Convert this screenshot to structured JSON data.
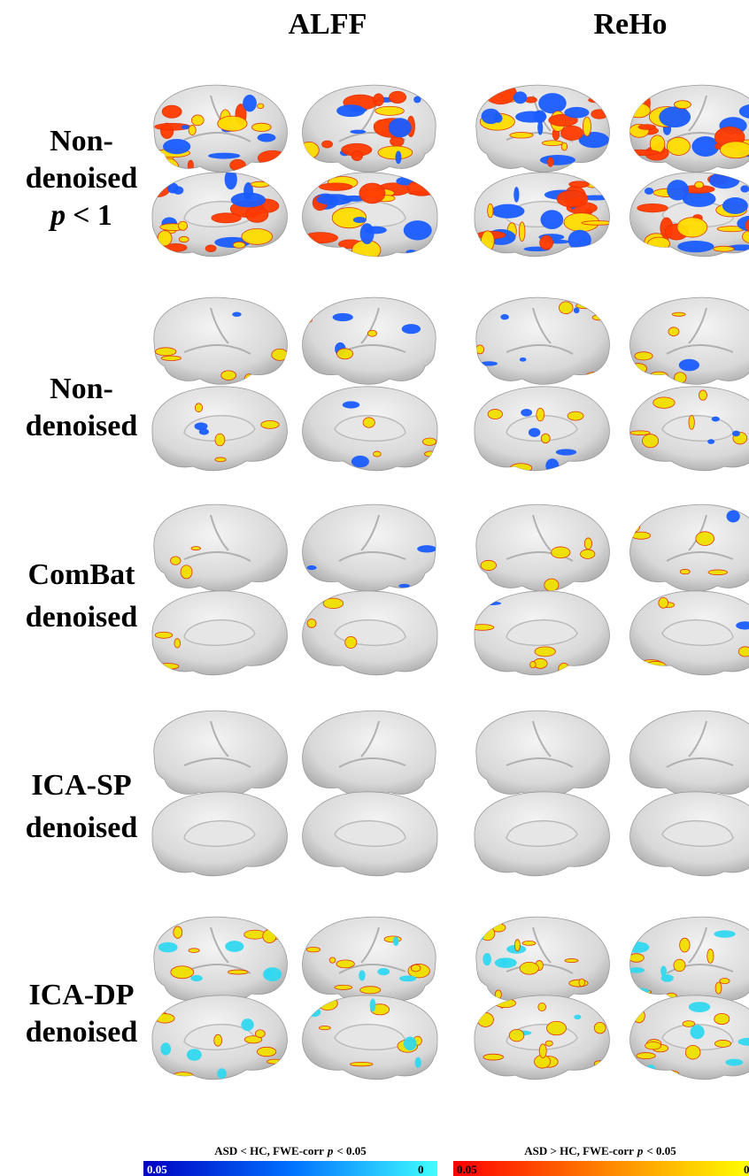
{
  "columns": [
    "ALFF",
    "ReHo"
  ],
  "rows": [
    {
      "lines": [
        "Non-",
        "denoised"
      ],
      "condition": {
        "variable": "p",
        "threshold": "< 1"
      }
    },
    {
      "lines": [
        "Non-",
        "denoised"
      ]
    },
    {
      "lines": [
        "ComBat",
        "denoised"
      ]
    },
    {
      "lines": [
        "ICA-SP",
        "denoised"
      ]
    },
    {
      "lines": [
        "ICA-DP",
        "denoised"
      ]
    }
  ],
  "colorbars": [
    {
      "title": "ASD < HC, FWE-corr",
      "variable": "p",
      "threshold": "< 0.05",
      "min_label": "0.05",
      "max_label": "0"
    },
    {
      "title": "ASD > HC, FWE-corr",
      "variable": "p",
      "threshold": "< 0.05",
      "min_label": "0.05",
      "max_label": "0"
    }
  ]
}
